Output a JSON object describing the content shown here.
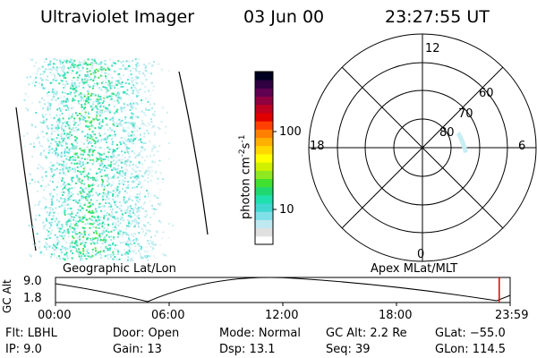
{
  "header": {
    "instrument": "Ultraviolet Imager",
    "date": "03 Jun 00",
    "time": "23:27:55 UT"
  },
  "left_panel_label": "Geographic Lat/Lon",
  "right_panel_label": "Apex MLat/MLT",
  "colorbar": {
    "unit": "photon cm",
    "unit_exp1": "-2",
    "unit_mid": "s",
    "unit_exp2": "-1",
    "ticks": [
      "100",
      "10"
    ],
    "tick_values": [
      100,
      10
    ],
    "colors": [
      "#ffffff",
      "#e0e0e0",
      "#c0e8f0",
      "#80e0e8",
      "#40d8d0",
      "#20e0b0",
      "#20d870",
      "#40e030",
      "#90e820",
      "#d0f000",
      "#ffff00",
      "#ffd800",
      "#ffb000",
      "#ff8000",
      "#ff4000",
      "#e00000",
      "#c00020",
      "#900040",
      "#600050",
      "#300040",
      "#000020"
    ]
  },
  "polar": {
    "mlt_labels": {
      "top": "12",
      "left": "18",
      "right": "6",
      "bottom": "0"
    },
    "lat_labels": [
      "60",
      "70",
      "80"
    ],
    "lat_values": [
      60,
      70,
      80
    ]
  },
  "altitude_plot": {
    "ylabel": "GC Alt",
    "yticks": [
      "9.0",
      "1.8"
    ],
    "yrange": [
      1.8,
      9.0
    ],
    "xticks": [
      "00:00",
      "06:00",
      "12:00",
      "18:00",
      "23:59"
    ],
    "current_time_fraction": 0.976
  },
  "footer": {
    "flt": "Flt: LBHL",
    "ip": "IP:  9.0",
    "door": "Door: Open",
    "gain": "Gain: 13",
    "mode": "Mode: Normal",
    "dsp": "Dsp:   13.1",
    "gcalt": "GC Alt: 2.2 Re",
    "seq": "Seq: 39",
    "glat": "GLat: −55.0",
    "glon": "GLon: 114.5"
  }
}
